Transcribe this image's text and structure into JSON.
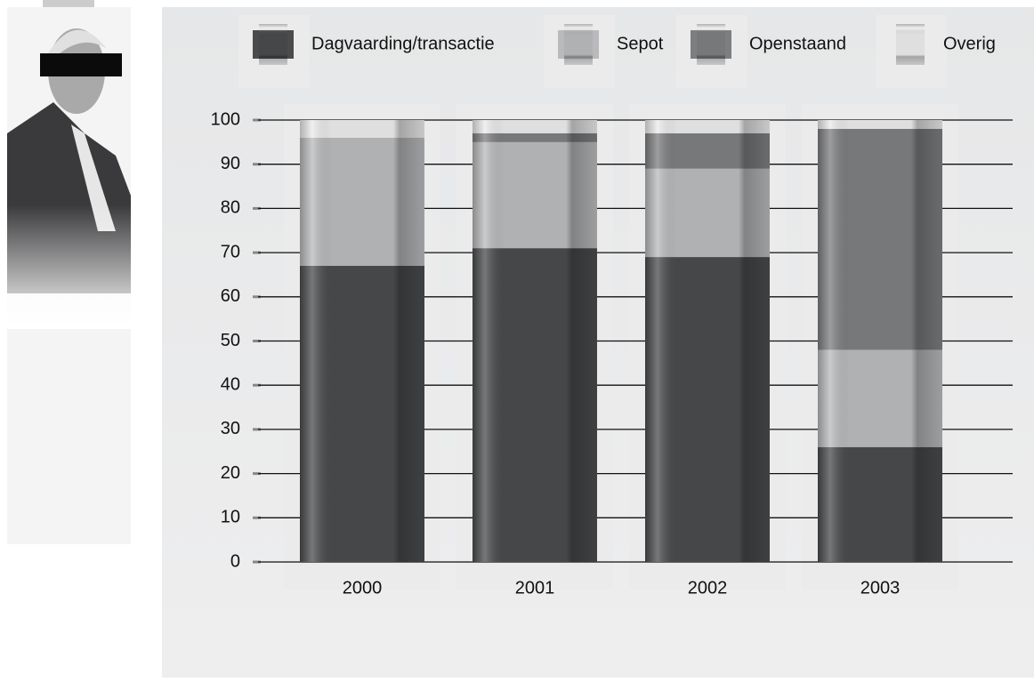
{
  "chart_data": {
    "type": "stacked-bar",
    "categories": [
      "2000",
      "2001",
      "2002",
      "2003"
    ],
    "series": [
      {
        "name": "Dagvaarding/transactie",
        "color": "#4a4b4d",
        "values": [
          67,
          71,
          69,
          26
        ]
      },
      {
        "name": "Sepot",
        "color": "#b9babc",
        "values": [
          29,
          24,
          20,
          22
        ]
      },
      {
        "name": "Openstaand",
        "color": "#7d7e80",
        "values": [
          0,
          2,
          8,
          50
        ]
      },
      {
        "name": "Overig",
        "color": "#ebebeb",
        "values": [
          4,
          3,
          3,
          2
        ]
      }
    ],
    "ylim": [
      0,
      100
    ],
    "yticks": [
      0,
      10,
      20,
      30,
      40,
      50,
      60,
      70,
      80,
      90,
      100
    ],
    "grid": true,
    "legend": "top"
  }
}
